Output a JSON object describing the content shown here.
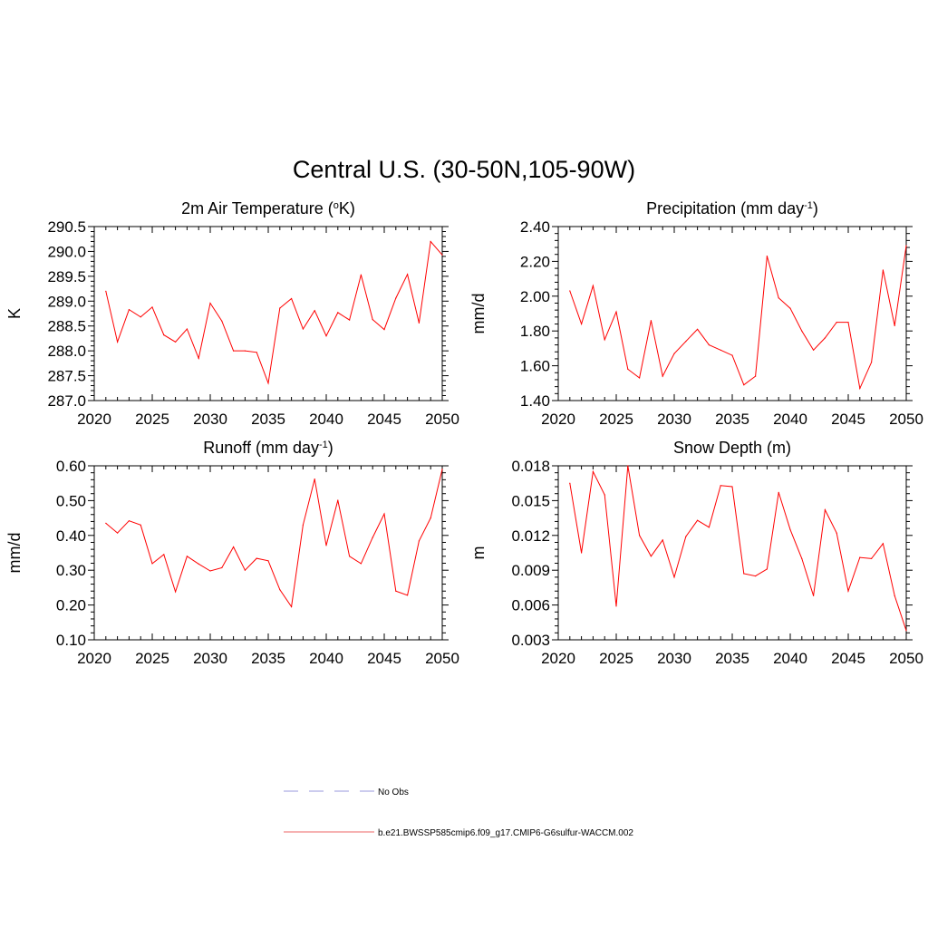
{
  "title": "Central U.S. (30-50N,105-90W)",
  "legend": {
    "entries": [
      {
        "label": "No Obs",
        "color": "#9999dd",
        "dash": "dashed"
      },
      {
        "label": "b.e21.BWSSP585cmip6.f09_g17.CMIP6-G6sulfur-WACCM.002",
        "color": "#ee6666",
        "dash": "solid"
      }
    ]
  },
  "chart_data": [
    {
      "type": "line",
      "title": "2m Air Temperature (°K)",
      "title_parts": [
        {
          "t": "2m Air Temperature ("
        },
        {
          "t": "o",
          "sup": true
        },
        {
          "t": "K)"
        }
      ],
      "xlabel": "",
      "ylabel": "K",
      "xlim": [
        2020,
        2050
      ],
      "ylim": [
        287.0,
        290.5
      ],
      "xticks": [
        "2020",
        "2025",
        "2030",
        "2035",
        "2040",
        "2045",
        "2050"
      ],
      "yticks": [
        "287.0",
        "287.5",
        "288.0",
        "288.5",
        "289.0",
        "289.5",
        "290.0",
        "290.5"
      ],
      "grid": false,
      "series": [
        {
          "color": "#ff0000",
          "x": [
            2021,
            2022,
            2023,
            2024,
            2025,
            2026,
            2027,
            2028,
            2029,
            2030,
            2031,
            2032,
            2033,
            2034,
            2035,
            2036,
            2037,
            2038,
            2039,
            2040,
            2041,
            2042,
            2043,
            2044,
            2045,
            2046,
            2047,
            2048,
            2049,
            2050
          ],
          "values": [
            289.2,
            288.18,
            288.83,
            288.68,
            288.88,
            288.32,
            288.18,
            288.44,
            287.85,
            288.96,
            288.6,
            288.0,
            288.0,
            287.97,
            287.35,
            288.86,
            289.05,
            288.44,
            288.81,
            288.3,
            288.77,
            288.62,
            289.53,
            288.63,
            288.43,
            289.06,
            289.54,
            288.56,
            290.2,
            289.93
          ]
        }
      ]
    },
    {
      "type": "line",
      "title": "Precipitation (mm day-1)",
      "title_parts": [
        {
          "t": "Precipitation (mm day"
        },
        {
          "t": "-1",
          "sup": true
        },
        {
          "t": ")"
        }
      ],
      "xlabel": "",
      "ylabel": "mm/d",
      "xlim": [
        2020,
        2050
      ],
      "ylim": [
        1.4,
        2.4
      ],
      "xticks": [
        "2020",
        "2025",
        "2030",
        "2035",
        "2040",
        "2045",
        "2050"
      ],
      "yticks": [
        "1.40",
        "1.60",
        "1.80",
        "2.00",
        "2.20",
        "2.40"
      ],
      "grid": false,
      "series": [
        {
          "color": "#ff0000",
          "x": [
            2021,
            2022,
            2023,
            2024,
            2025,
            2026,
            2027,
            2028,
            2029,
            2030,
            2031,
            2032,
            2033,
            2034,
            2035,
            2036,
            2037,
            2038,
            2039,
            2040,
            2041,
            2042,
            2043,
            2044,
            2045,
            2046,
            2047,
            2048,
            2049,
            2050
          ],
          "values": [
            2.03,
            1.84,
            2.06,
            1.75,
            1.91,
            1.58,
            1.53,
            1.86,
            1.54,
            1.67,
            1.74,
            1.81,
            1.72,
            1.69,
            1.66,
            1.49,
            1.54,
            2.23,
            1.99,
            1.93,
            1.8,
            1.69,
            1.76,
            1.85,
            1.85,
            1.47,
            1.62,
            2.15,
            1.83,
            2.29
          ]
        }
      ]
    },
    {
      "type": "line",
      "title": "Runoff (mm day-1)",
      "title_parts": [
        {
          "t": "Runoff (mm day"
        },
        {
          "t": "-1",
          "sup": true
        },
        {
          "t": ")"
        }
      ],
      "xlabel": "",
      "ylabel": "mm/d",
      "xlim": [
        2020,
        2050
      ],
      "ylim": [
        0.1,
        0.6
      ],
      "xticks": [
        "2020",
        "2025",
        "2030",
        "2035",
        "2040",
        "2045",
        "2050"
      ],
      "yticks": [
        "0.10",
        "0.20",
        "0.30",
        "0.40",
        "0.50",
        "0.60"
      ],
      "grid": false,
      "series": [
        {
          "color": "#ff0000",
          "x": [
            2021,
            2022,
            2023,
            2024,
            2025,
            2026,
            2027,
            2028,
            2029,
            2030,
            2031,
            2032,
            2033,
            2034,
            2035,
            2036,
            2037,
            2038,
            2039,
            2040,
            2041,
            2042,
            2043,
            2044,
            2045,
            2046,
            2047,
            2048,
            2049,
            2050
          ],
          "values": [
            0.435,
            0.407,
            0.442,
            0.43,
            0.319,
            0.345,
            0.238,
            0.34,
            0.318,
            0.298,
            0.307,
            0.367,
            0.3,
            0.334,
            0.327,
            0.244,
            0.195,
            0.43,
            0.562,
            0.371,
            0.501,
            0.34,
            0.319,
            0.394,
            0.462,
            0.24,
            0.228,
            0.384,
            0.45,
            0.59
          ]
        }
      ]
    },
    {
      "type": "line",
      "title": "Snow Depth (m)",
      "title_parts": [
        {
          "t": "Snow Depth (m)"
        }
      ],
      "xlabel": "",
      "ylabel": "m",
      "xlim": [
        2020,
        2050
      ],
      "ylim": [
        0.003,
        0.018
      ],
      "xticks": [
        "2020",
        "2025",
        "2030",
        "2035",
        "2040",
        "2045",
        "2050"
      ],
      "yticks": [
        "0.003",
        "0.006",
        "0.009",
        "0.012",
        "0.015",
        "0.018"
      ],
      "grid": false,
      "series": [
        {
          "color": "#ff0000",
          "x": [
            2021,
            2022,
            2023,
            2024,
            2025,
            2026,
            2027,
            2028,
            2029,
            2030,
            2031,
            2032,
            2033,
            2034,
            2035,
            2036,
            2037,
            2038,
            2039,
            2040,
            2041,
            2042,
            2043,
            2044,
            2045,
            2046,
            2047,
            2048,
            2049,
            2050
          ],
          "values": [
            0.0165,
            0.0105,
            0.0175,
            0.0155,
            0.0059,
            0.018,
            0.012,
            0.0102,
            0.0116,
            0.0084,
            0.0119,
            0.0133,
            0.0127,
            0.0163,
            0.0162,
            0.0087,
            0.0085,
            0.0091,
            0.0157,
            0.0125,
            0.01,
            0.0068,
            0.0142,
            0.0122,
            0.0072,
            0.0101,
            0.01,
            0.0113,
            0.0068,
            0.0038
          ]
        }
      ]
    }
  ]
}
